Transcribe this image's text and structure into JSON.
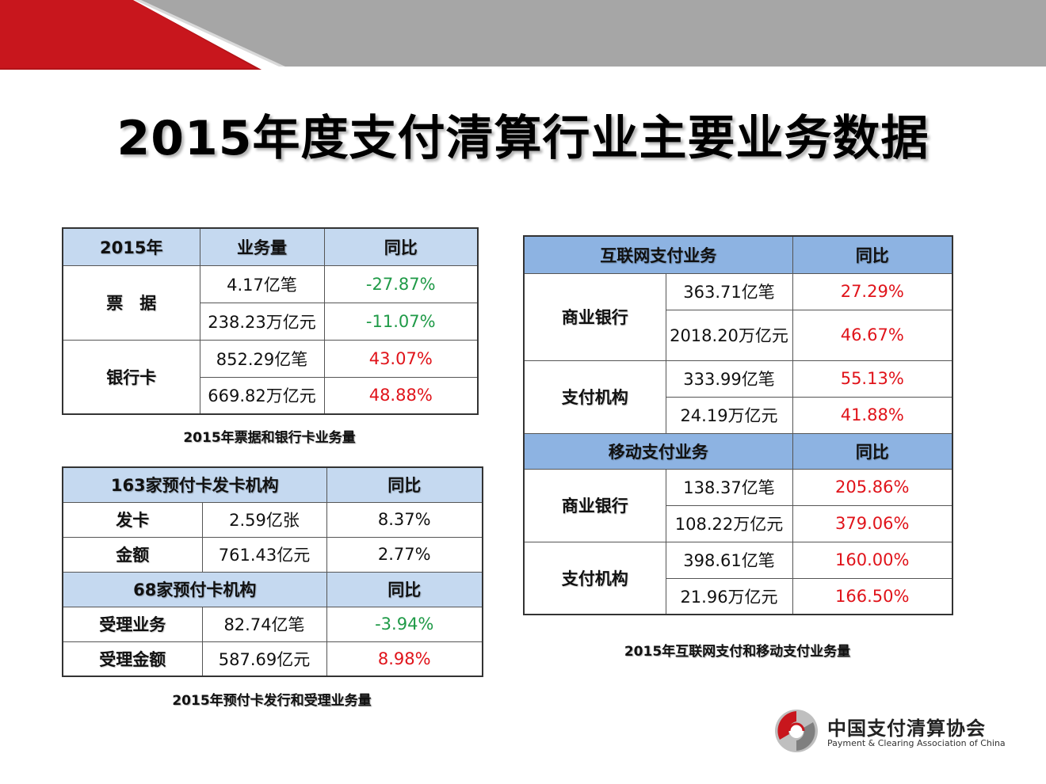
{
  "title": "2015年度支付清算行业主要业务数据",
  "colors": {
    "banner_red": "#c8161d",
    "banner_gray": "#a6a6a6",
    "header_light_blue": "#c5d9f0",
    "header_blue": "#8db3e2",
    "increase_red": "#e0131a",
    "decrease_green": "#1f9a47"
  },
  "table1": {
    "headers": [
      "2015年",
      "业务量",
      "同比"
    ],
    "groups": [
      {
        "label": "票　据",
        "rows": [
          {
            "volume": "4.17亿笔",
            "yoy": "-27.87%"
          },
          {
            "volume": "238.23万亿元",
            "yoy": "-11.07%"
          }
        ]
      },
      {
        "label": "银行卡",
        "rows": [
          {
            "volume": "852.29亿笔",
            "yoy": "43.07%"
          },
          {
            "volume": "669.82万亿元",
            "yoy": "48.88%"
          }
        ]
      }
    ],
    "caption": "2015年票据和银行卡业务量"
  },
  "table2": {
    "section1_header": [
      "163家预付卡发卡机构",
      "同比"
    ],
    "section1_rows": [
      {
        "label": "发卡",
        "value": "2.59亿张",
        "yoy": "8.37%"
      },
      {
        "label": "金额",
        "value": "761.43亿元",
        "yoy": "2.77%"
      }
    ],
    "section2_header": [
      "68家预付卡机构",
      "同比"
    ],
    "section2_rows": [
      {
        "label": "受理业务",
        "value": "82.74亿笔",
        "yoy": "-3.94%"
      },
      {
        "label": "受理金额",
        "value": "587.69亿元",
        "yoy": "8.98%"
      }
    ],
    "caption": "2015年预付卡发行和受理业务量"
  },
  "table3": {
    "section1_header": [
      "互联网支付业务",
      "同比"
    ],
    "section1_groups": [
      {
        "label": "商业银行",
        "rows": [
          {
            "volume": "363.71亿笔",
            "yoy": "27.29%"
          },
          {
            "volume": "2018.20万亿元",
            "yoy": "46.67%"
          }
        ]
      },
      {
        "label": "支付机构",
        "rows": [
          {
            "volume": "333.99亿笔",
            "yoy": "55.13%"
          },
          {
            "volume": "24.19万亿元",
            "yoy": "41.88%"
          }
        ]
      }
    ],
    "section2_header": [
      "移动支付业务",
      "同比"
    ],
    "section2_groups": [
      {
        "label": "商业银行",
        "rows": [
          {
            "volume": "138.37亿笔",
            "yoy": "205.86%"
          },
          {
            "volume": "108.22万亿元",
            "yoy": "379.06%"
          }
        ]
      },
      {
        "label": "支付机构",
        "rows": [
          {
            "volume": "398.61亿笔",
            "yoy": "160.00%"
          },
          {
            "volume": "21.96万亿元",
            "yoy": "166.50%"
          }
        ]
      }
    ],
    "caption": "2015年互联网支付和移动支付业务量"
  },
  "logo": {
    "name_cn": "中国支付清算协会",
    "name_en": "Payment & Clearing Association of China"
  }
}
